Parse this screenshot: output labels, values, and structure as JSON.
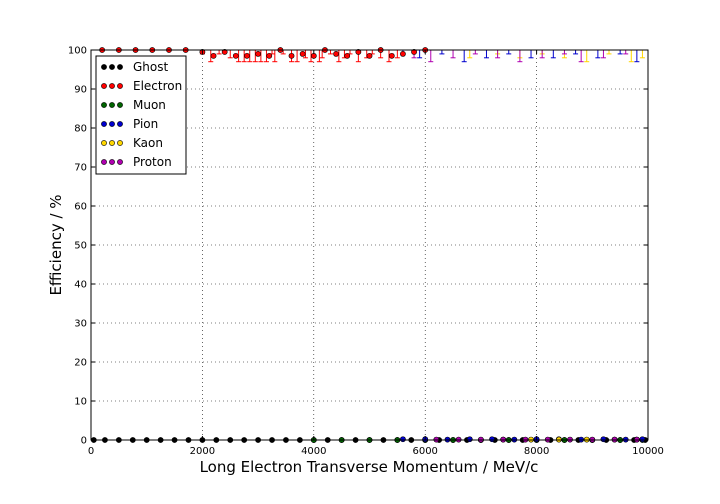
{
  "chart_data": {
    "type": "scatter",
    "title": "",
    "xlabel": "Long Electron Transverse Momentum / MeV/c",
    "ylabel": "Efficiency / %",
    "xlim": [
      0,
      10000
    ],
    "ylim": [
      0,
      100
    ],
    "xticks": [
      "0",
      "2000",
      "4000",
      "6000",
      "8000",
      "10000"
    ],
    "yticks": [
      "0",
      "10",
      "20",
      "30",
      "40",
      "50",
      "60",
      "70",
      "80",
      "90",
      "100"
    ],
    "grid": true,
    "legend_position": "top-left",
    "series": [
      {
        "name": "Ghost",
        "color": "#000000",
        "x": [
          50,
          250,
          500,
          750,
          1000,
          1250,
          1500,
          1750,
          2000,
          2250,
          2500,
          2750,
          3000,
          3250,
          3500,
          3750,
          4000,
          4250,
          4500,
          4750,
          5000,
          5250,
          5500,
          5750,
          6000,
          6250,
          6500,
          6750,
          7000,
          7250,
          7500,
          7750,
          8000,
          8250,
          8500,
          8750,
          9000,
          9250,
          9500,
          9750,
          9950
        ],
        "y": [
          0,
          0,
          0,
          0,
          0,
          0,
          0,
          0,
          0,
          0,
          0,
          0,
          0,
          0,
          0,
          0,
          0,
          0,
          0,
          0,
          0,
          0,
          0,
          0,
          0,
          0,
          0,
          0,
          0,
          0,
          0,
          0,
          0,
          0,
          0,
          0,
          0,
          0,
          0,
          0,
          0
        ]
      },
      {
        "name": "Electron",
        "color": "#ff0000",
        "x": [
          200,
          500,
          800,
          1100,
          1400,
          1700,
          2000,
          2200,
          2400,
          2600,
          2800,
          3000,
          3200,
          3400,
          3600,
          3800,
          4000,
          4200,
          4400,
          4600,
          4800,
          5000,
          5200,
          5400,
          5600,
          5800,
          6000
        ],
        "y": [
          100,
          100,
          100,
          100,
          100,
          100,
          99.5,
          98.5,
          99.5,
          98.5,
          98.5,
          99,
          98.5,
          100,
          98.5,
          99,
          98.5,
          100,
          99,
          98.5,
          99.5,
          98.5,
          100,
          98.5,
          99,
          99.5,
          100
        ]
      },
      {
        "name": "Muon",
        "color": "#006400",
        "x": [
          4000,
          4500,
          5000,
          5500,
          6000,
          6500,
          7000,
          7500,
          8000,
          8500,
          9000,
          9500,
          9900
        ],
        "y": [
          0,
          0,
          0,
          0,
          0,
          0,
          0,
          0,
          0,
          0,
          0,
          0,
          0
        ]
      },
      {
        "name": "Pion",
        "color": "#0000cd",
        "x": [
          5600,
          6000,
          6400,
          6800,
          7200,
          7600,
          8000,
          8400,
          8800,
          9200,
          9600,
          9900
        ],
        "y": [
          0.2,
          0.2,
          0.1,
          0.2,
          0.2,
          0.1,
          0.2,
          0.2,
          0.1,
          0.2,
          0.1,
          0.2
        ]
      },
      {
        "name": "Kaon",
        "color": "#ffd700",
        "x": [
          7400,
          7900,
          8400,
          8900,
          9400,
          9800
        ],
        "y": [
          0.1,
          0.1,
          0.1,
          0.1,
          0.1,
          0.1
        ]
      },
      {
        "name": "Proton",
        "color": "#b000b0",
        "x": [
          6200,
          6600,
          7000,
          7400,
          7800,
          8200,
          8600,
          9000,
          9400,
          9800
        ],
        "y": [
          0.1,
          0.1,
          0.1,
          0.1,
          0.1,
          0.1,
          0.1,
          0.1,
          0.1,
          0.1
        ]
      }
    ],
    "upper_caps": [
      {
        "name": "Electron",
        "color": "#ff0000",
        "x": [
          2000,
          2150,
          2300,
          2500,
          2650,
          2750,
          2850,
          2950,
          3050,
          3150,
          3250,
          3300,
          3450,
          3600,
          3700,
          3850,
          3950,
          4100,
          4150,
          4300,
          4450,
          4550,
          4650,
          4800,
          4950,
          5050,
          5200,
          5350,
          5500
        ],
        "y": [
          99,
          97,
          99,
          98,
          97,
          97,
          97,
          97,
          97,
          97,
          99,
          97,
          99,
          97,
          97,
          98,
          97,
          97,
          98,
          99,
          97,
          98,
          99,
          97,
          98,
          99,
          98,
          97,
          98
        ]
      },
      {
        "name": "Pion",
        "color": "#0000cd",
        "x": [
          5600,
          5900,
          6300,
          6700,
          7100,
          7500,
          7900,
          8300,
          8700,
          9100,
          9500,
          9800
        ],
        "y": [
          99,
          98,
          99,
          97,
          98,
          99,
          98,
          98,
          99,
          98,
          99,
          97
        ]
      },
      {
        "name": "Kaon",
        "color": "#ffd700",
        "x": [
          6800,
          7300,
          7700,
          8100,
          8500,
          8900,
          9300,
          9700,
          9900
        ],
        "y": [
          98,
          99,
          98,
          99,
          98,
          97,
          99,
          97,
          98
        ]
      },
      {
        "name": "Proton",
        "color": "#b000b0",
        "x": [
          5800,
          6100,
          6500,
          6900,
          7300,
          7700,
          8100,
          8500,
          8800,
          9200,
          9600
        ],
        "y": [
          98,
          97,
          98,
          99,
          98,
          97,
          98,
          99,
          97,
          98,
          99
        ]
      }
    ]
  }
}
